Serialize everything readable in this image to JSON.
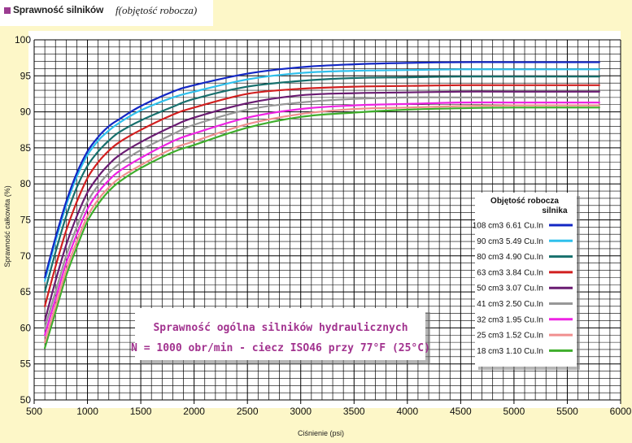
{
  "header": {
    "title": "Sprawność silników",
    "function": "f(objętość robocza)"
  },
  "chart_data": {
    "type": "line",
    "xlabel": "Ciśnienie  (psi)",
    "ylabel": "Sprawność całkowita (%)",
    "xlim": [
      500,
      6000
    ],
    "ylim": [
      50,
      100
    ],
    "x_ticks": [
      500,
      1000,
      1500,
      2000,
      2500,
      3000,
      3500,
      4000,
      4500,
      5000,
      5500,
      6000
    ],
    "y_ticks": [
      50,
      55,
      60,
      65,
      70,
      75,
      80,
      85,
      90,
      95,
      100
    ],
    "grid": true,
    "annotation": [
      "Sprawność ogólna silników hydraulicznych",
      "N = 1000 obr/min  - ciecz ISO46 przy 77°F (25°C)"
    ],
    "legend": {
      "title": [
        "Objętość robocza",
        "silnika"
      ],
      "placement": "bottom-right"
    },
    "x": [
      600,
      700,
      800,
      900,
      1000,
      1100,
      1200,
      1300,
      1500,
      1800,
      2000,
      2500,
      3000,
      3500,
      4000,
      4500,
      5000,
      5800
    ],
    "series": [
      {
        "name": "108 cm3   6.61 Cu.In",
        "color": "#1327c4",
        "values": [
          67.0,
          72.5,
          77.5,
          81.5,
          84.5,
          86.5,
          88.0,
          89.0,
          90.8,
          92.8,
          93.7,
          95.3,
          96.2,
          96.6,
          96.8,
          96.9,
          96.9,
          96.9
        ]
      },
      {
        "name": "90 cm3   5.49 Cu.In",
        "color": "#2fc0ec",
        "values": [
          66.5,
          72.0,
          77.0,
          81.0,
          84.0,
          86.0,
          87.4,
          88.5,
          90.2,
          92.0,
          92.8,
          94.5,
          95.4,
          95.7,
          95.8,
          95.9,
          95.9,
          95.9
        ]
      },
      {
        "name": "80 cm3   4.90 Cu.In",
        "color": "#17706d",
        "values": [
          65.0,
          70.5,
          75.5,
          79.5,
          82.5,
          84.5,
          86.0,
          87.2,
          88.8,
          90.7,
          91.8,
          93.5,
          94.3,
          94.7,
          94.8,
          94.9,
          94.9,
          94.9
        ]
      },
      {
        "name": "63 cm3   3.84 Cu.In",
        "color": "#d11f1f",
        "values": [
          63.0,
          68.5,
          73.5,
          77.5,
          80.8,
          83.0,
          84.6,
          85.8,
          87.5,
          89.6,
          90.6,
          92.5,
          93.2,
          93.5,
          93.6,
          93.7,
          93.7,
          93.7
        ]
      },
      {
        "name": "50 cm3   3.07 Cu.In",
        "color": "#6a1c72",
        "values": [
          61.0,
          66.5,
          71.5,
          75.5,
          78.8,
          81.0,
          82.7,
          84.0,
          85.8,
          88.0,
          89.2,
          91.2,
          92.3,
          92.6,
          92.7,
          92.8,
          92.8,
          92.8
        ]
      },
      {
        "name": "41 cm3   2.50 Cu.In",
        "color": "#979797",
        "values": [
          60.0,
          65.0,
          70.0,
          74.0,
          77.5,
          79.8,
          81.5,
          82.8,
          84.7,
          86.9,
          88.2,
          90.3,
          91.3,
          91.8,
          92.0,
          92.0,
          92.0,
          92.0
        ]
      },
      {
        "name": "32 cm3   1.95 Cu.In",
        "color": "#ee23e3",
        "values": [
          59.0,
          64.0,
          69.0,
          73.0,
          76.5,
          78.8,
          80.5,
          81.8,
          83.6,
          85.9,
          87.0,
          89.2,
          90.4,
          90.9,
          91.1,
          91.3,
          91.3,
          91.3
        ]
      },
      {
        "name": "25 cm3   1.52 Cu.In",
        "color": "#f18f8f",
        "values": [
          58.0,
          63.0,
          68.0,
          72.0,
          75.5,
          77.8,
          79.5,
          80.8,
          82.6,
          84.9,
          85.9,
          88.3,
          89.7,
          90.4,
          90.6,
          90.8,
          90.9,
          90.9
        ]
      },
      {
        "name": "18 cm3   1.10 Cu.In",
        "color": "#3fae2c",
        "values": [
          57.2,
          62.2,
          67.2,
          71.2,
          74.8,
          77.2,
          79.0,
          80.3,
          82.2,
          84.4,
          85.4,
          87.8,
          89.3,
          89.9,
          90.3,
          90.5,
          90.6,
          90.6
        ]
      }
    ]
  }
}
